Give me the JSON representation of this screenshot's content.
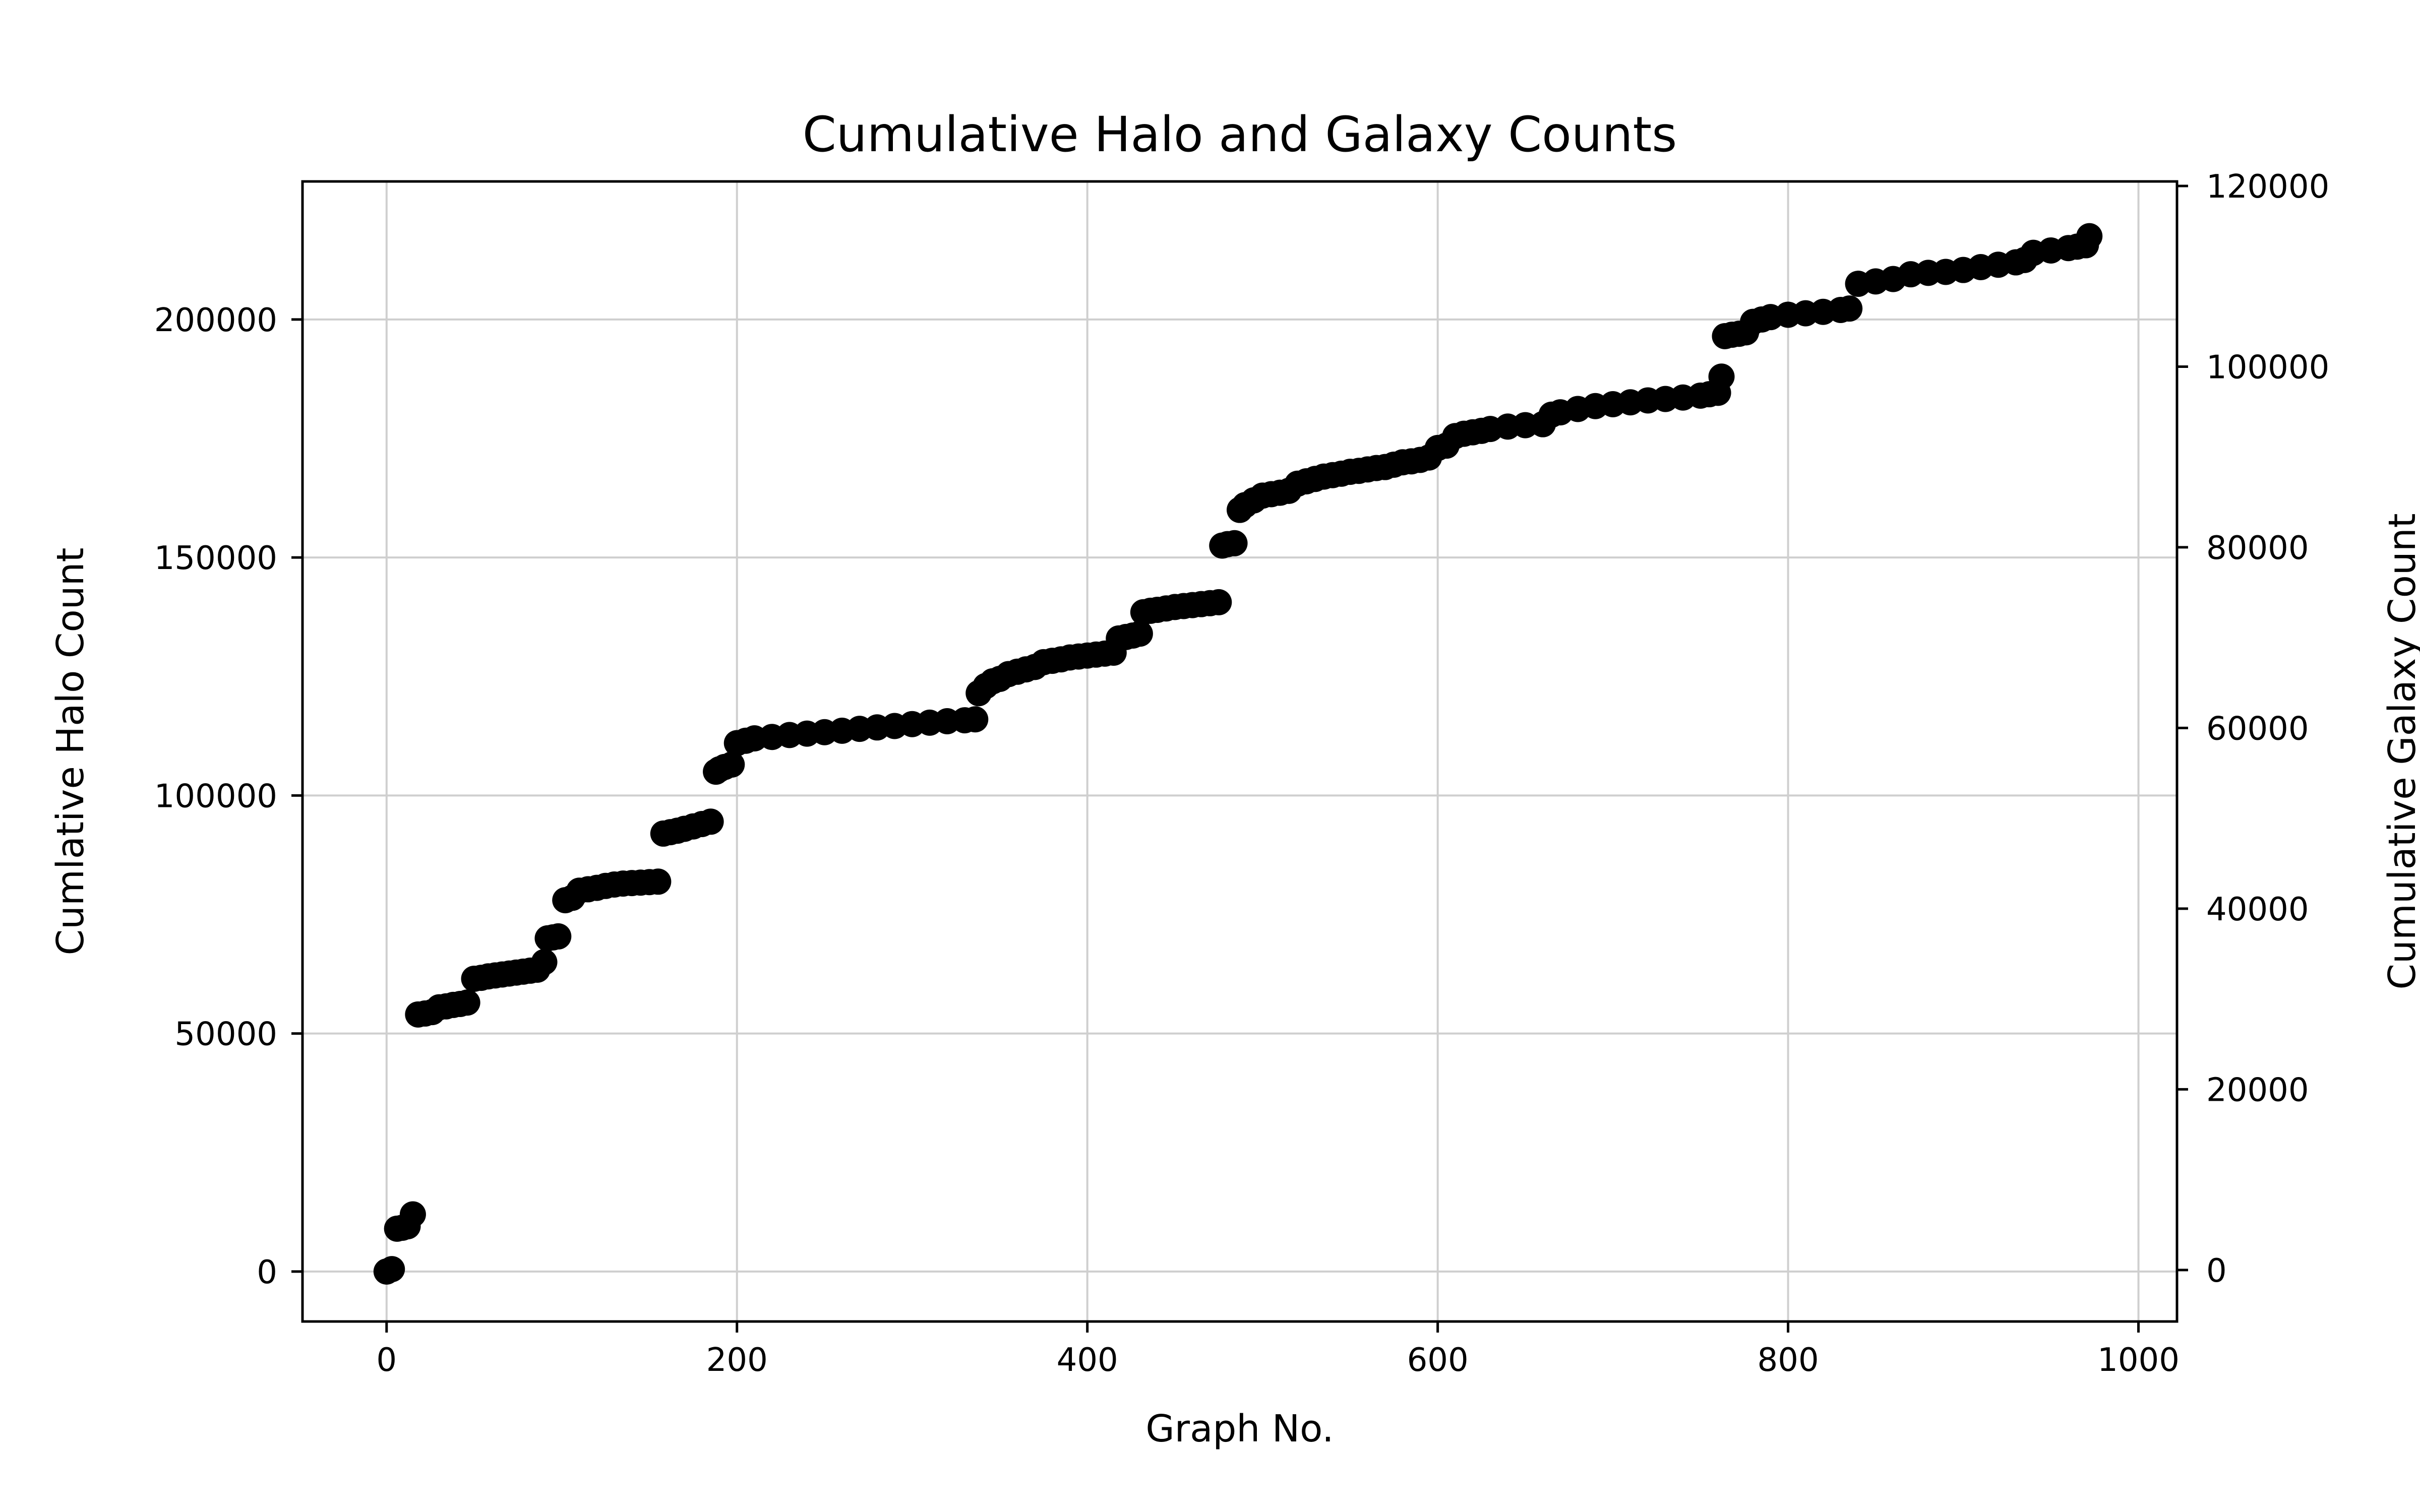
{
  "chart_data": {
    "type": "scatter",
    "title": "Cumulative Halo and Galaxy Counts",
    "xlabel": "Graph No.",
    "ylabel": "Cumlative Halo Count",
    "ylabel_right": "Cumulative Galaxy Count",
    "xlim": [
      -48,
      1022
    ],
    "ylim": [
      -10500,
      229000
    ],
    "ylim_right": [
      -5700,
      120500
    ],
    "xticks": [
      0,
      200,
      400,
      600,
      800,
      1000
    ],
    "yticks": [
      0,
      50000,
      100000,
      150000,
      200000
    ],
    "yticks_right": [
      0,
      20000,
      40000,
      60000,
      80000,
      100000,
      120000
    ],
    "grid": true,
    "marker_color": "#000000",
    "series": [
      {
        "values_note": "",
        "x": [
          0,
          3,
          6,
          9,
          12,
          15,
          18,
          22,
          26,
          30,
          34,
          38,
          42,
          46,
          50,
          54,
          58,
          62,
          66,
          70,
          74,
          78,
          82,
          86,
          90,
          92,
          95,
          98,
          102,
          106,
          110,
          115,
          120,
          125,
          130,
          135,
          140,
          145,
          150,
          155,
          158,
          162,
          166,
          170,
          175,
          180,
          185,
          188,
          190,
          193,
          197,
          200,
          205,
          210,
          220,
          230,
          240,
          250,
          260,
          270,
          280,
          290,
          300,
          310,
          320,
          330,
          336,
          338,
          342,
          346,
          350,
          355,
          360,
          365,
          370,
          375,
          380,
          385,
          390,
          395,
          400,
          405,
          410,
          415,
          418,
          422,
          426,
          430,
          432,
          436,
          440,
          445,
          450,
          455,
          460,
          465,
          470,
          475,
          477,
          480,
          484,
          487,
          490,
          495,
          500,
          505,
          510,
          515,
          520,
          525,
          530,
          535,
          540,
          545,
          550,
          555,
          560,
          565,
          570,
          575,
          580,
          585,
          590,
          595,
          600,
          605,
          610,
          615,
          620,
          625,
          630,
          640,
          650,
          660,
          665,
          670,
          680,
          690,
          700,
          710,
          720,
          730,
          740,
          750,
          755,
          760,
          762,
          764,
          768,
          772,
          776,
          780,
          785,
          790,
          800,
          810,
          820,
          830,
          835,
          840,
          850,
          860,
          870,
          880,
          890,
          900,
          910,
          920,
          930,
          935,
          940,
          950,
          960,
          965,
          970,
          972
        ],
        "y": [
          0,
          500,
          9000,
          9200,
          9500,
          12000,
          54000,
          54200,
          54500,
          55500,
          55700,
          56000,
          56200,
          56500,
          61500,
          61700,
          62000,
          62200,
          62400,
          62600,
          62800,
          63000,
          63200,
          63400,
          65000,
          70000,
          70200,
          70400,
          78000,
          78500,
          80000,
          80300,
          80600,
          81000,
          81300,
          81500,
          81600,
          81700,
          81800,
          81900,
          92000,
          92300,
          92600,
          93000,
          93500,
          94000,
          94500,
          105000,
          105500,
          106000,
          106500,
          111000,
          111500,
          112000,
          112300,
          112700,
          113000,
          113300,
          113600,
          114000,
          114300,
          114600,
          115000,
          115300,
          115600,
          115800,
          116000,
          121500,
          123000,
          124000,
          124500,
          125500,
          126000,
          126500,
          127000,
          128000,
          128300,
          128600,
          129000,
          129200,
          129400,
          129600,
          129800,
          130000,
          133000,
          133300,
          133600,
          134000,
          138500,
          138800,
          139000,
          139300,
          139600,
          139800,
          140000,
          140200,
          140400,
          140600,
          152500,
          152800,
          153000,
          160000,
          161000,
          162000,
          163000,
          163300,
          163600,
          164000,
          165500,
          166000,
          166500,
          167000,
          167300,
          167600,
          168000,
          168200,
          168500,
          168800,
          169000,
          169500,
          170000,
          170200,
          170500,
          171000,
          173000,
          173500,
          175500,
          176000,
          176300,
          176600,
          177000,
          177500,
          177800,
          178000,
          180000,
          180500,
          181200,
          181800,
          182200,
          182600,
          183000,
          183300,
          183600,
          184000,
          184300,
          184600,
          188000,
          196500,
          196800,
          197000,
          197300,
          199500,
          200000,
          200500,
          201000,
          201300,
          201600,
          202000,
          202300,
          207500,
          208000,
          208500,
          209500,
          209800,
          210000,
          210400,
          211000,
          211500,
          212000,
          212500,
          214000,
          214500,
          215000,
          215300,
          215600,
          217500
        ]
      }
    ]
  }
}
